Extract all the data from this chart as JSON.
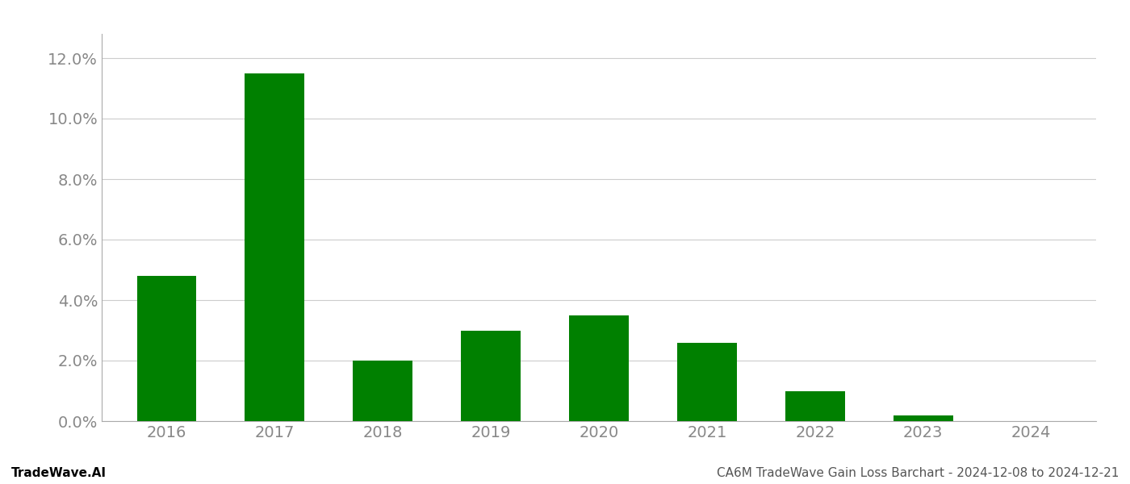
{
  "years": [
    "2016",
    "2017",
    "2018",
    "2019",
    "2020",
    "2021",
    "2022",
    "2023",
    "2024"
  ],
  "values": [
    0.048,
    0.115,
    0.02,
    0.03,
    0.035,
    0.026,
    0.01,
    0.002,
    0.0
  ],
  "bar_color": "#008000",
  "background_color": "#ffffff",
  "grid_color": "#cccccc",
  "ylim": [
    0,
    0.128
  ],
  "yticks": [
    0.0,
    0.02,
    0.04,
    0.06,
    0.08,
    0.1,
    0.12
  ],
  "footer_left": "TradeWave.AI",
  "footer_right": "CA6M TradeWave Gain Loss Barchart - 2024-12-08 to 2024-12-21",
  "tick_fontsize": 14,
  "footer_fontsize": 11,
  "bar_width": 0.55
}
